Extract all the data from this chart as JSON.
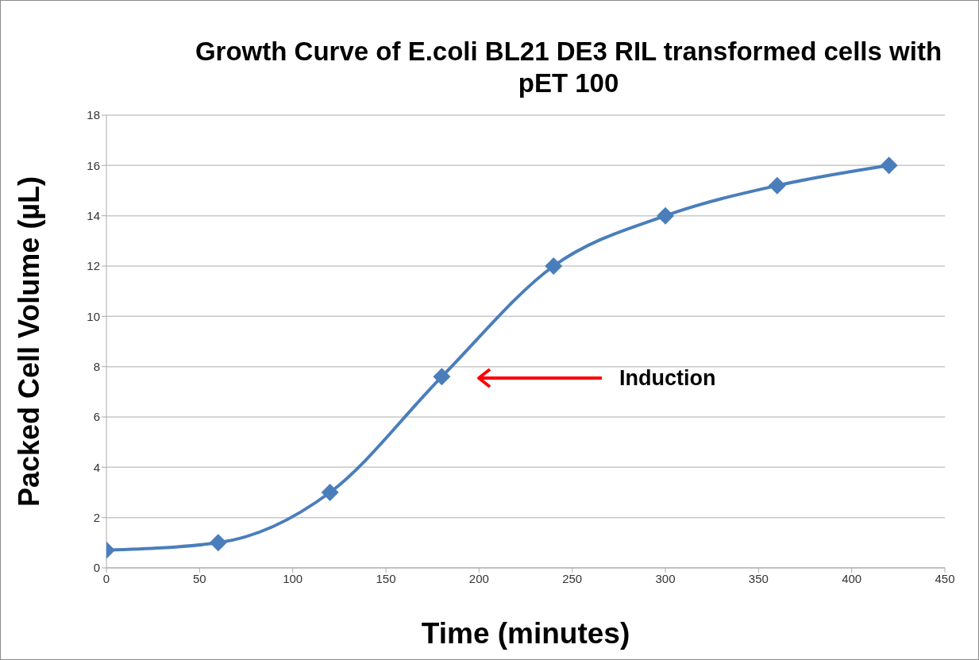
{
  "chart_data": {
    "type": "line",
    "title": "Growth Curve of E.coli BL21 DE3 RIL transformed cells with pET 100",
    "xlabel": "Time (minutes)",
    "ylabel": "Packed Cell Volume (µL)",
    "x": [
      0,
      60,
      120,
      180,
      240,
      300,
      360,
      420
    ],
    "series": [
      {
        "color": "#4a7ebb",
        "values": [
          0.7,
          1.0,
          3.0,
          7.6,
          12,
          14,
          15.2,
          16
        ]
      }
    ],
    "xlim": [
      0,
      450
    ],
    "xticks": [
      0,
      50,
      100,
      150,
      200,
      250,
      300,
      350,
      400,
      450
    ],
    "ylim": [
      0,
      18
    ],
    "yticks": [
      0,
      2,
      4,
      6,
      8,
      10,
      12,
      14,
      16,
      18
    ],
    "grid": "y",
    "marker": "diamond",
    "line_style": "solid",
    "annotations": [
      "Induction"
    ]
  }
}
